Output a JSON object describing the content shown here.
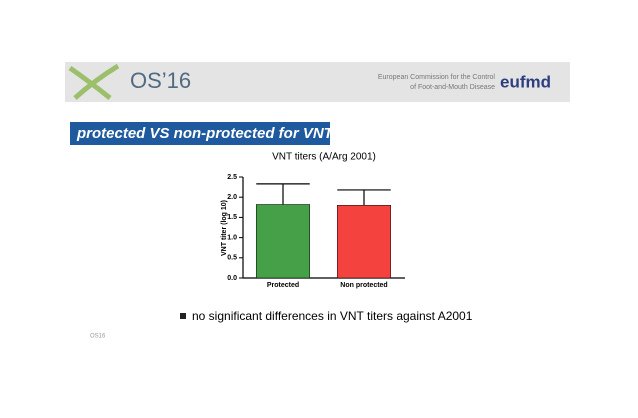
{
  "header": {
    "logo_text": "OS’16",
    "org_line1": "European Commission for the Control",
    "org_line2": "of Foot-and-Mouth Disease",
    "brand": "eufmd"
  },
  "slide_title": "protected VS non-protected for VNT",
  "chart_data": {
    "type": "bar",
    "title": "VNT titers (A/Arg 2001)",
    "y_label": "VNT titer (log 10)",
    "categories": [
      "Protected",
      "Non protected"
    ],
    "values": [
      1.82,
      1.8
    ],
    "errors": [
      0.51,
      0.38
    ],
    "colors": [
      "#46a047",
      "#f4423f"
    ],
    "ylim": [
      0,
      2.5
    ],
    "yticks": [
      {
        "value": 0,
        "label": "0.0"
      },
      {
        "value": 0.5,
        "label": "0.5"
      },
      {
        "value": 1,
        "label": "1.0"
      },
      {
        "value": 1.5,
        "label": "1.5"
      },
      {
        "value": 2,
        "label": "2.0"
      },
      {
        "value": 2.5,
        "label": "2.5"
      }
    ]
  },
  "bullet": "no significant differences in VNT titers against A2001",
  "footer": "OS16"
}
